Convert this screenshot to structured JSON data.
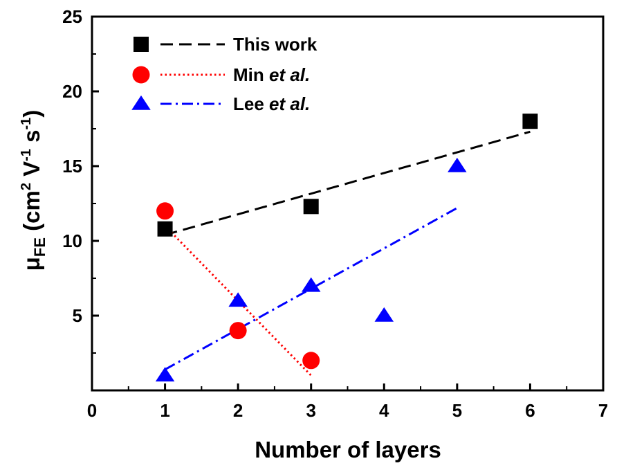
{
  "chart_data": {
    "type": "scatter",
    "title": "",
    "xlabel": "Number of layers",
    "ylabel": {
      "symbol": "μ",
      "subscript": "FE",
      "units_open": " (cm",
      "exp2": "2",
      "units_v": " V",
      "exp_neg1": "-1",
      "units_s": " s",
      "exp_neg1b": "-1",
      "units_close": ")"
    },
    "xlim": [
      0,
      7
    ],
    "ylim": [
      0,
      25
    ],
    "x_ticks": [
      "0",
      "1",
      "2",
      "3",
      "4",
      "5",
      "6",
      "7"
    ],
    "y_ticks": [
      "5",
      "10",
      "15",
      "20",
      "25"
    ],
    "legend_position": "top-left",
    "series": [
      {
        "name": "This work",
        "name_plain": "This work",
        "name_italic": "",
        "marker": "square",
        "color": "#000000",
        "line_style": "dashed",
        "points": [
          [
            1,
            10.8
          ],
          [
            3,
            12.3
          ],
          [
            6,
            18.0
          ]
        ],
        "fit": [
          [
            1,
            10.4
          ],
          [
            6,
            17.3
          ]
        ]
      },
      {
        "name": "Min et al.",
        "name_plain": "Min ",
        "name_italic": "et al.",
        "marker": "circle",
        "color": "#ff0000",
        "line_style": "dotted",
        "points": [
          [
            1,
            12.0
          ],
          [
            2,
            4.0
          ],
          [
            3,
            2.0
          ]
        ],
        "fit": [
          [
            1,
            11.0
          ],
          [
            3,
            1.0
          ]
        ]
      },
      {
        "name": "Lee et al.",
        "name_plain": "Lee ",
        "name_italic": "et al.",
        "marker": "triangle",
        "color": "#0000ff",
        "line_style": "dashdot",
        "points": [
          [
            1,
            1.0
          ],
          [
            2,
            6.0
          ],
          [
            3,
            7.0
          ],
          [
            4,
            5.0
          ],
          [
            5,
            15.0
          ]
        ],
        "fit": [
          [
            1,
            1.4
          ],
          [
            5,
            12.2
          ]
        ]
      }
    ]
  }
}
